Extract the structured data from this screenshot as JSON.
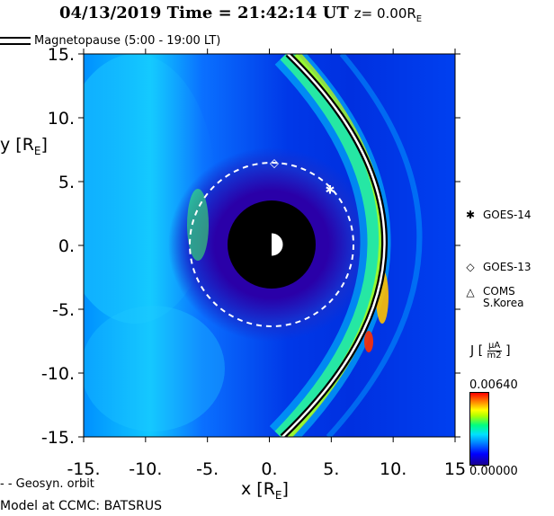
{
  "title": {
    "date_time": "04/13/2019 Time = 21:42:14 UT",
    "z_label": "z= 0.00R",
    "z_sub": "E"
  },
  "legend": {
    "magnetopause": "Magnetopause (5:00 - 19:00 LT)",
    "geosync": "- -  Geosyn. orbit"
  },
  "axes": {
    "y_label": "y [R",
    "y_sub": "E",
    "y_close": "]",
    "x_label": "x [R",
    "x_sub": "E",
    "x_close": "]",
    "x_ticks": [
      "-15.",
      "-10.",
      "-5.",
      "0.",
      "5.",
      "10.",
      "15"
    ],
    "y_ticks": [
      "15.",
      "10.",
      "5.",
      "0.",
      "-5.",
      "-10.",
      "-15."
    ],
    "range": [
      -15,
      15
    ]
  },
  "satellites": [
    {
      "symbol": "✱",
      "name": "GOES-14",
      "name2": "",
      "x": 4.9,
      "y": 4.4,
      "icon": "asterisk-icon"
    },
    {
      "symbol": "◇",
      "name": "GOES-13",
      "name2": "",
      "x": 0.4,
      "y": 6.5,
      "icon": "diamond-icon"
    },
    {
      "symbol": "△",
      "name": "COMS",
      "name2": "S.Korea",
      "icon": "triangle-icon"
    }
  ],
  "colorbar": {
    "title": "J [",
    "unit_num": "μA",
    "unit_den": "m2",
    "title_close": "]",
    "max": "0.00640",
    "min": "0.00000"
  },
  "credit": "Model at CCMC: BATSRUS"
}
